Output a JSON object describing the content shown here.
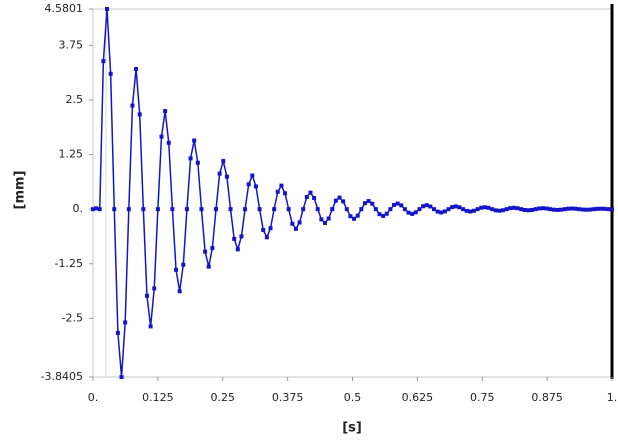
{
  "chart_data": {
    "type": "line",
    "x_label": "[s]",
    "y_label": "[mm]",
    "color": "#1414c8",
    "xlim": [
      0,
      1
    ],
    "ylim": [
      -3.8405,
      4.5801
    ],
    "xticks": [
      {
        "value": 0,
        "label": "0."
      },
      0.125,
      0.25,
      0.375,
      0.5,
      0.625,
      0.75,
      0.875,
      {
        "value": 1,
        "label": "1."
      }
    ],
    "yticks": [
      -3.8405,
      -2.5,
      -1.25,
      {
        "value": 0,
        "label": "0."
      },
      1.25,
      2.5,
      3.75,
      4.5801
    ],
    "x": [
      0,
      0.006,
      0.013,
      0.02,
      0.027,
      0.034,
      0.041,
      0.048,
      0.055,
      0.062,
      0.069,
      0.076,
      0.083,
      0.09,
      0.097,
      0.104,
      0.111,
      0.118,
      0.125,
      0.132,
      0.139,
      0.146,
      0.153,
      0.16,
      0.167,
      0.174,
      0.181,
      0.188,
      0.195,
      0.202,
      0.209,
      0.216,
      0.223,
      0.23,
      0.237,
      0.244,
      0.251,
      0.258,
      0.265,
      0.272,
      0.279,
      0.286,
      0.293,
      0.3,
      0.307,
      0.314,
      0.321,
      0.328,
      0.335,
      0.342,
      0.349,
      0.356,
      0.363,
      0.37,
      0.377,
      0.384,
      0.391,
      0.398,
      0.405,
      0.412,
      0.419,
      0.426,
      0.433,
      0.44,
      0.447,
      0.454,
      0.461,
      0.468,
      0.475,
      0.482,
      0.489,
      0.496,
      0.503,
      0.51,
      0.517,
      0.524,
      0.531,
      0.538,
      0.545,
      0.552,
      0.559,
      0.566,
      0.573,
      0.58,
      0.587,
      0.594,
      0.601,
      0.608,
      0.615,
      0.622,
      0.629,
      0.636,
      0.643,
      0.65,
      0.657,
      0.664,
      0.671,
      0.678,
      0.685,
      0.692,
      0.699,
      0.706,
      0.713,
      0.72,
      0.727,
      0.734,
      0.741,
      0.748,
      0.755,
      0.762,
      0.769,
      0.776,
      0.783,
      0.79,
      0.797,
      0.804,
      0.811,
      0.818,
      0.825,
      0.832,
      0.839,
      0.846,
      0.853,
      0.86,
      0.867,
      0.874,
      0.881,
      0.888,
      0.895,
      0.902,
      0.909,
      0.916,
      0.923,
      0.93,
      0.937,
      0.944,
      0.951,
      0.958,
      0.965,
      0.972,
      0.979,
      0.986,
      0.993,
      1.0
    ],
    "values": [
      0,
      0.02,
      0,
      3.387,
      4.5801,
      3.097,
      0,
      -2.833,
      -3.8405,
      -2.592,
      0,
      2.371,
      3.207,
      2.168,
      0,
      -1.983,
      -2.683,
      -1.814,
      0,
      1.66,
      2.245,
      1.518,
      0,
      -1.388,
      -1.878,
      -1.27,
      0,
      1.162,
      1.571,
      1.062,
      0,
      -0.972,
      -1.315,
      -0.889,
      0,
      0.813,
      1.1,
      0.744,
      0,
      -0.68,
      -0.92,
      -0.622,
      0,
      0.569,
      0.77,
      0.521,
      0,
      -0.476,
      -0.644,
      -0.436,
      0,
      0.398,
      0.539,
      0.364,
      0,
      -0.333,
      -0.451,
      -0.305,
      0,
      0.279,
      0.377,
      0.255,
      0,
      -0.233,
      -0.316,
      -0.214,
      0,
      0.195,
      0.264,
      0.178,
      0,
      -0.163,
      -0.221,
      -0.149,
      0,
      0.137,
      0.185,
      0.125,
      0,
      -0.114,
      -0.155,
      -0.105,
      0,
      0.096,
      0.129,
      0.087,
      0,
      -0.08,
      -0.108,
      -0.073,
      0,
      0.067,
      0.091,
      0.061,
      0,
      -0.056,
      -0.076,
      -0.051,
      0,
      0.047,
      0.063,
      0.043,
      0,
      -0.039,
      -0.053,
      -0.036,
      0,
      0.033,
      0.044,
      0.03,
      0,
      -0.027,
      -0.037,
      -0.025,
      0,
      0.023,
      0.031,
      0.021,
      0,
      -0.019,
      -0.026,
      -0.018,
      0,
      0.016,
      0.022,
      0.015,
      0,
      -0.013,
      -0.018,
      -0.012,
      0,
      0.011,
      0.015,
      0.01,
      0,
      -0.009,
      -0.013,
      -0.009,
      0,
      0.008,
      0.011,
      0.007,
      0,
      -0.007
    ]
  }
}
